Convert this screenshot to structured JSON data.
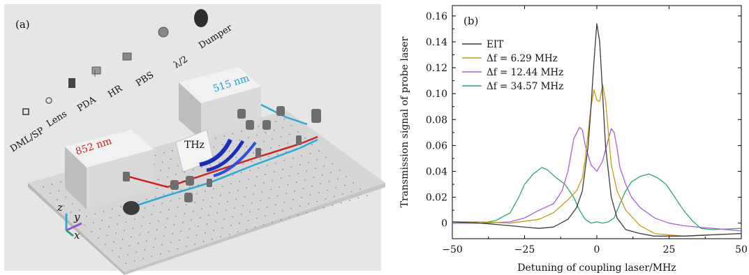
{
  "panel_a": {
    "label": "(a)",
    "legend_items": [
      "DML/SP",
      "Lens",
      "PDA",
      "HR",
      "PBS",
      "λ/2",
      "Dumper"
    ],
    "laser_852": "852 nm",
    "laser_515": "515 nm",
    "thz_label": "THz",
    "axis_z": "z",
    "axis_y": "y",
    "axis_x": "x",
    "colors": {
      "table": "#d9d9d9",
      "box": "#e3e3e3",
      "beam_852": "#cc2222",
      "beam_515": "#2aa8d8",
      "thz_blue": "#1a2fb8"
    }
  },
  "chart_data": {
    "type": "line",
    "panel_label": "(b)",
    "xlabel": "Detuning of coupling laser/MHz",
    "ylabel": "Transmission signal of probe laser",
    "xlim": [
      -50,
      50
    ],
    "ylim": [
      -0.012,
      0.168
    ],
    "xticks": [
      -50,
      -25,
      0,
      25,
      50
    ],
    "xtick_labels": [
      "−50",
      "−25",
      "0",
      "25",
      "50"
    ],
    "yticks": [
      0,
      0.02,
      0.04,
      0.06,
      0.08,
      0.1,
      0.12,
      0.14,
      0.16
    ],
    "ytick_labels": [
      "0",
      "0.02",
      "0.04",
      "0.06",
      "0.08",
      "0.10",
      "0.12",
      "0.14",
      "0.16"
    ],
    "legend_position": "top-right",
    "grid": false,
    "series": [
      {
        "name": "EIT",
        "color": "#3a3a3a",
        "x": [
          -50,
          -40,
          -30,
          -20,
          -15,
          -10,
          -7,
          -5,
          -3,
          -2,
          -1,
          0,
          1,
          2,
          3,
          5,
          7,
          10,
          15,
          20,
          30,
          40,
          50
        ],
        "y": [
          0.001,
          0.0,
          -0.002,
          -0.004,
          -0.003,
          0.003,
          0.012,
          0.025,
          0.06,
          0.09,
          0.125,
          0.154,
          0.14,
          0.1,
          0.06,
          0.02,
          0.004,
          -0.005,
          -0.008,
          -0.01,
          -0.01,
          -0.009,
          -0.008
        ]
      },
      {
        "name": "Δf = 6.29 MHz",
        "color": "#c99a14",
        "x": [
          -50,
          -40,
          -30,
          -20,
          -15,
          -10,
          -7,
          -5,
          -4,
          -3,
          -2,
          -1,
          0,
          1,
          2,
          3,
          4,
          5,
          7,
          10,
          15,
          20,
          30,
          40,
          50
        ],
        "y": [
          0.001,
          0.001,
          0.0,
          0.003,
          0.008,
          0.018,
          0.025,
          0.035,
          0.05,
          0.07,
          0.09,
          0.103,
          0.095,
          0.094,
          0.107,
          0.095,
          0.07,
          0.045,
          0.025,
          0.01,
          -0.002,
          -0.008,
          -0.01,
          -0.009,
          -0.008
        ]
      },
      {
        "name": "Δf = 12.44 MHz",
        "color": "#a45ee0",
        "x": [
          -50,
          -40,
          -30,
          -25,
          -20,
          -15,
          -12,
          -10,
          -8,
          -6,
          -5,
          -4,
          -2,
          0,
          2,
          4,
          5,
          6,
          7,
          8,
          10,
          12,
          15,
          20,
          25,
          30,
          40,
          50
        ],
        "y": [
          0.0,
          0.0,
          0.001,
          0.004,
          0.01,
          0.015,
          0.025,
          0.04,
          0.065,
          0.074,
          0.072,
          0.06,
          0.045,
          0.04,
          0.048,
          0.065,
          0.073,
          0.07,
          0.058,
          0.043,
          0.03,
          0.02,
          0.012,
          0.004,
          0.0,
          -0.002,
          -0.004,
          -0.006
        ]
      },
      {
        "name": "Δf = 34.57 MHz",
        "color": "#2aa86a",
        "x": [
          -50,
          -40,
          -35,
          -30,
          -27,
          -25,
          -22,
          -19,
          -17,
          -14,
          -11,
          -8,
          -6,
          -4,
          -2,
          0,
          2,
          4,
          6,
          8,
          10,
          12,
          15,
          18,
          21,
          24,
          27,
          30,
          33,
          36,
          40,
          50
        ],
        "y": [
          0.001,
          0.0,
          0.002,
          0.008,
          0.02,
          0.03,
          0.038,
          0.043,
          0.041,
          0.035,
          0.03,
          0.02,
          0.01,
          0.003,
          0.0,
          0.001,
          0.0,
          0.001,
          0.004,
          0.015,
          0.025,
          0.032,
          0.036,
          0.038,
          0.035,
          0.03,
          0.02,
          0.01,
          0.002,
          -0.004,
          -0.005,
          -0.004
        ]
      }
    ]
  }
}
